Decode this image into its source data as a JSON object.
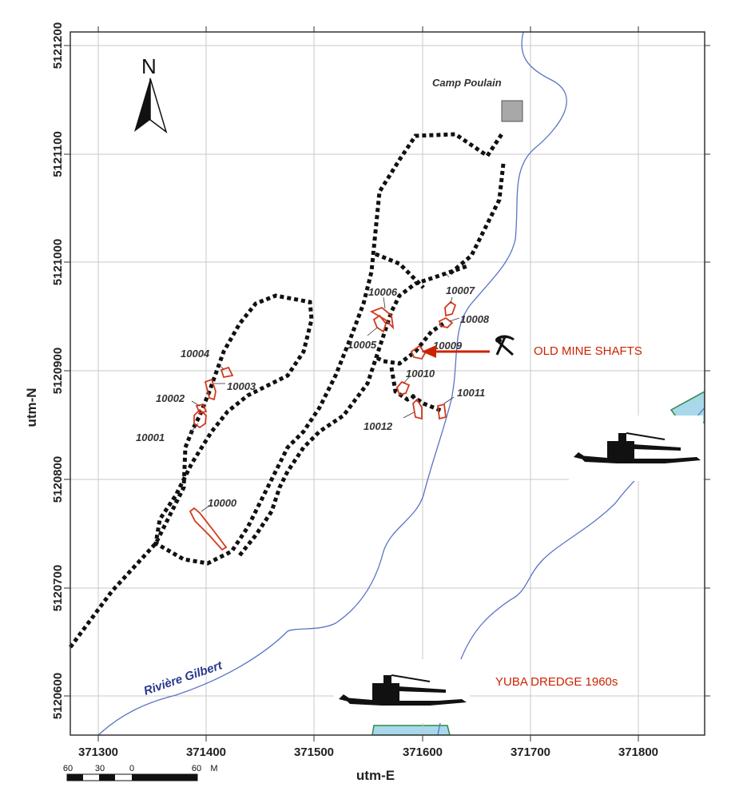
{
  "axes": {
    "x_title": "utm-E",
    "y_title": "utm-N",
    "x_ticks": [
      "371300",
      "371400",
      "371500",
      "371600",
      "371700",
      "371800"
    ],
    "y_ticks": [
      "5121200",
      "5121100",
      "5121000",
      "5120900",
      "5120800",
      "5120700",
      "5120600"
    ]
  },
  "north_arrow": {
    "label": "N"
  },
  "camp": {
    "label": "Camp Poulain",
    "fill": "#a8a8a8"
  },
  "river": {
    "label": "Rivière Gilbert",
    "line_color": "#5a74c4"
  },
  "features": [
    {
      "id": "10000"
    },
    {
      "id": "10001"
    },
    {
      "id": "10002"
    },
    {
      "id": "10003"
    },
    {
      "id": "10004"
    },
    {
      "id": "10005"
    },
    {
      "id": "10006"
    },
    {
      "id": "10007"
    },
    {
      "id": "10008"
    },
    {
      "id": "10009"
    },
    {
      "id": "10010"
    },
    {
      "id": "10011"
    },
    {
      "id": "10012"
    }
  ],
  "annotations": {
    "mine_shafts": "OLD MINE SHAFTS",
    "dredge": "YUBA DREDGE 1960s",
    "accent": "#cc2200",
    "icon": "pick-and-shovel-icon"
  },
  "scale_bar": {
    "labels": [
      "60",
      "30",
      "0",
      "60"
    ],
    "unit": "M"
  },
  "colors": {
    "outline_red": "#d23a1e",
    "water": "#a8d8ea",
    "grid": "#c8c8c8"
  }
}
